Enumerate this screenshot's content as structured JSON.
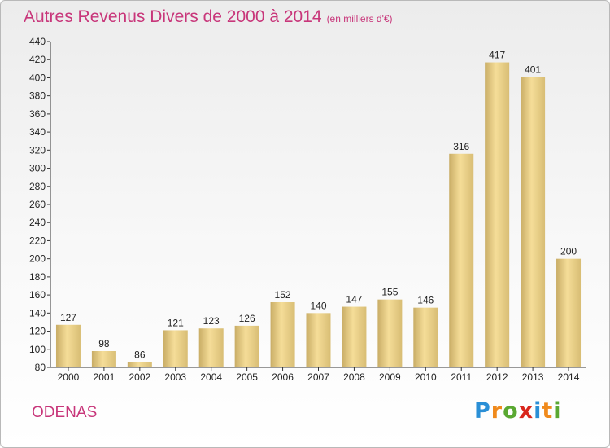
{
  "header": {
    "title": "Autres Revenus Divers de 2000 à 2014",
    "subtitle": "(en milliers d'€)"
  },
  "footer": {
    "city": "ODENAS",
    "logo_letters": [
      "P",
      "r",
      "o",
      "x",
      "i",
      "t",
      "i"
    ]
  },
  "chart_data": {
    "type": "bar",
    "title": "Autres Revenus Divers de 2000 à 2014",
    "subtitle": "(en milliers d'€)",
    "categories": [
      "2000",
      "2001",
      "2002",
      "2003",
      "2004",
      "2005",
      "2006",
      "2007",
      "2008",
      "2009",
      "2010",
      "2011",
      "2012",
      "2013",
      "2014"
    ],
    "values": [
      127,
      98,
      86,
      121,
      123,
      126,
      152,
      140,
      147,
      155,
      146,
      316,
      417,
      401,
      200
    ],
    "ylim": [
      80,
      440
    ],
    "yticks": [
      80,
      100,
      120,
      140,
      160,
      180,
      200,
      220,
      240,
      260,
      280,
      300,
      320,
      340,
      360,
      380,
      400,
      420,
      440
    ],
    "grid": false,
    "bar_color": "#e9cf84"
  }
}
